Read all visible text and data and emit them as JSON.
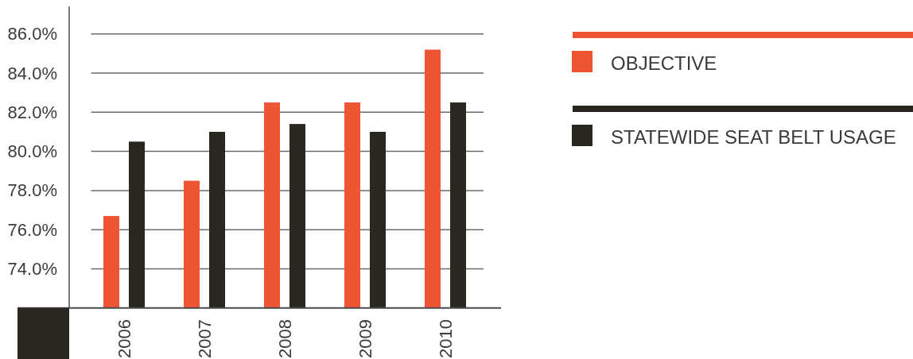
{
  "chart_data": {
    "type": "bar",
    "categories": [
      "2006",
      "2007",
      "2008",
      "2009",
      "2010"
    ],
    "series": [
      {
        "name": "OBJECTIVE",
        "color": "#ee5533",
        "values": [
          76.7,
          78.5,
          82.5,
          82.5,
          85.2
        ]
      },
      {
        "name": "STATEWIDE SEAT BELT USAGE",
        "color": "#2a2620",
        "values": [
          80.5,
          81.0,
          81.4,
          81.0,
          82.5
        ]
      }
    ],
    "ylim": [
      72,
      87.4
    ],
    "yticks": [
      {
        "value": 74,
        "label": "74.0%"
      },
      {
        "value": 76,
        "label": "76.0%"
      },
      {
        "value": 78,
        "label": "78.0%"
      },
      {
        "value": 80,
        "label": "80.0%"
      },
      {
        "value": 82,
        "label": "82.0%"
      },
      {
        "value": 84,
        "label": "84.0%"
      },
      {
        "value": 86,
        "label": "86.0%"
      }
    ],
    "grid": "y",
    "legend": "right"
  }
}
